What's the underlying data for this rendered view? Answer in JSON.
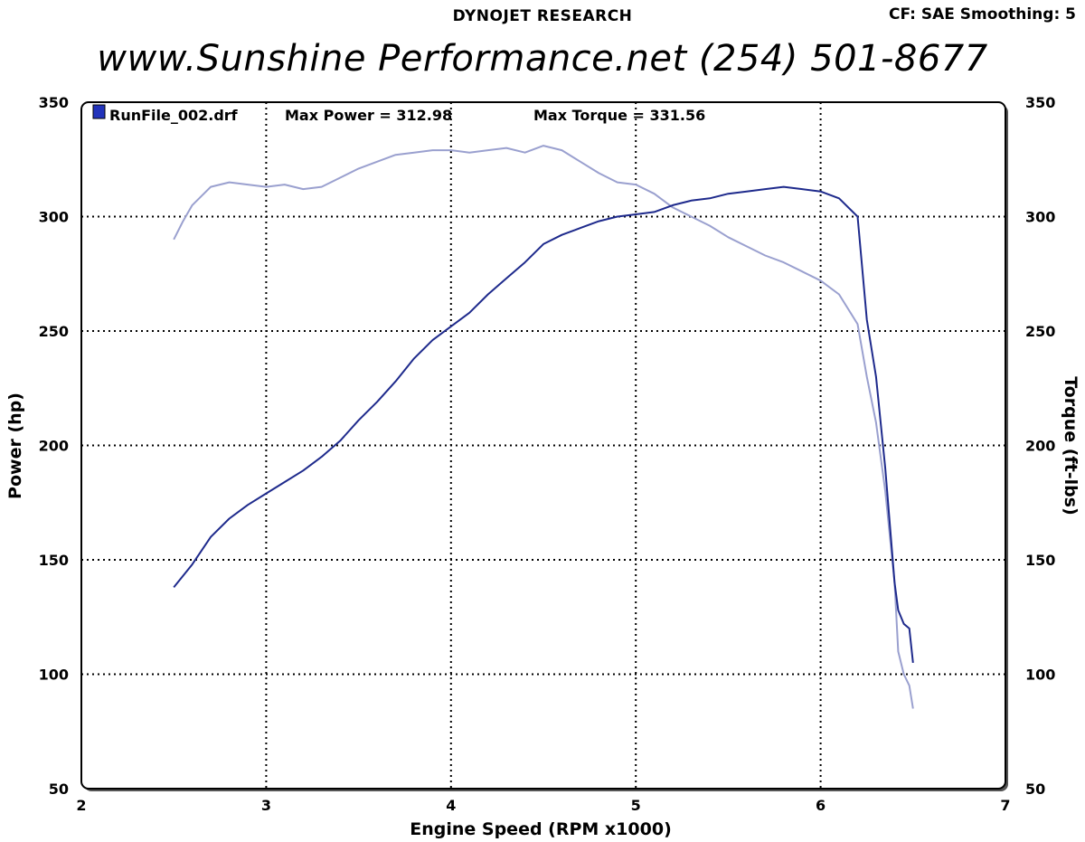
{
  "header": {
    "title": "DYNOJET RESEARCH",
    "settings": "CF: SAE  Smoothing: 5",
    "website": "www.Sunshine Performance.net  (254) 501-8677"
  },
  "colors": {
    "power": "#1e2a8c",
    "torque": "#9aa0cf",
    "grid": "#000000",
    "legend_box": "#2233bb"
  },
  "chart_data": {
    "type": "line",
    "xlabel": "Engine Speed (RPM x1000)",
    "ylabel": "Power (hp)",
    "y2label": "Torque (ft-lbs)",
    "xlim": [
      2,
      7
    ],
    "ylim": [
      50,
      350
    ],
    "y2lim": [
      50,
      350
    ],
    "x_ticks": [
      "2",
      "3",
      "4",
      "5",
      "6",
      "7"
    ],
    "y_ticks": [
      "50",
      "100",
      "150",
      "200",
      "250",
      "300",
      "350"
    ],
    "y2_ticks": [
      "50",
      "100",
      "150",
      "200",
      "250",
      "300",
      "350"
    ],
    "grid": true,
    "legend": {
      "file": "RunFile_002.drf",
      "max_power": "Max Power = 312.98",
      "max_torque": "Max Torque = 331.56"
    },
    "series": [
      {
        "key": "power",
        "axis": "left",
        "x": [
          2.5,
          2.6,
          2.7,
          2.8,
          2.9,
          3.0,
          3.1,
          3.2,
          3.3,
          3.4,
          3.5,
          3.6,
          3.7,
          3.8,
          3.9,
          4.0,
          4.1,
          4.2,
          4.3,
          4.4,
          4.5,
          4.6,
          4.7,
          4.8,
          4.9,
          5.0,
          5.1,
          5.2,
          5.3,
          5.4,
          5.5,
          5.6,
          5.7,
          5.8,
          5.9,
          6.0,
          6.1,
          6.2,
          6.25,
          6.3,
          6.35,
          6.38,
          6.4,
          6.42,
          6.45,
          6.48,
          6.5
        ],
        "y": [
          138,
          148,
          160,
          168,
          174,
          179,
          184,
          189,
          195,
          202,
          211,
          219,
          228,
          238,
          246,
          252,
          258,
          266,
          273,
          280,
          288,
          292,
          295,
          298,
          300,
          301,
          302,
          305,
          307,
          308,
          310,
          311,
          312,
          313,
          312,
          311,
          308,
          300,
          255,
          230,
          190,
          160,
          140,
          128,
          122,
          120,
          105
        ]
      },
      {
        "key": "torque",
        "axis": "right",
        "x": [
          2.5,
          2.55,
          2.6,
          2.7,
          2.8,
          2.9,
          3.0,
          3.1,
          3.2,
          3.3,
          3.4,
          3.5,
          3.6,
          3.7,
          3.8,
          3.9,
          4.0,
          4.1,
          4.2,
          4.3,
          4.4,
          4.5,
          4.6,
          4.7,
          4.8,
          4.9,
          5.0,
          5.1,
          5.2,
          5.3,
          5.4,
          5.5,
          5.6,
          5.7,
          5.8,
          5.9,
          6.0,
          6.1,
          6.2,
          6.25,
          6.3,
          6.35,
          6.4,
          6.42,
          6.45,
          6.48,
          6.5
        ],
        "y": [
          290,
          298,
          305,
          313,
          315,
          314,
          313,
          314,
          312,
          313,
          317,
          321,
          324,
          327,
          328,
          329,
          329,
          328,
          329,
          330,
          328,
          331,
          329,
          324,
          319,
          315,
          314,
          310,
          304,
          300,
          296,
          291,
          287,
          283,
          280,
          276,
          272,
          266,
          253,
          230,
          210,
          180,
          140,
          110,
          100,
          95,
          85
        ]
      }
    ]
  }
}
